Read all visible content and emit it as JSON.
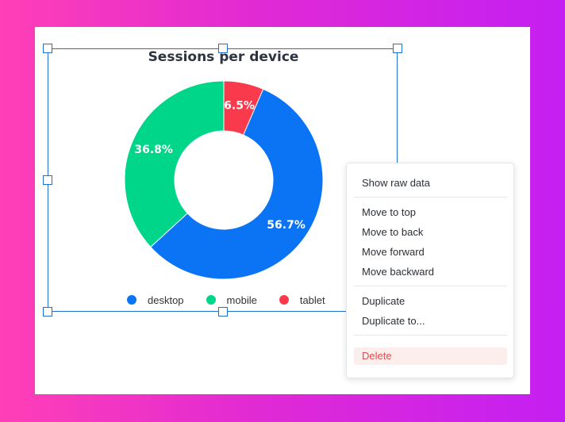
{
  "chart_data": {
    "type": "pie",
    "donut": true,
    "title": "Sessions per device",
    "categories": [
      "desktop",
      "mobile",
      "tablet"
    ],
    "values": [
      56.7,
      36.8,
      6.5
    ],
    "labels": [
      "56.7%",
      "36.8%",
      "6.5%"
    ],
    "colors": [
      "#0a74f5",
      "#00d68a",
      "#f93a4c"
    ],
    "legend_position": "bottom"
  },
  "context_menu": {
    "items": [
      {
        "label": "Show raw data"
      },
      {
        "label": "Move to top"
      },
      {
        "label": "Move to back"
      },
      {
        "label": "Move forward"
      },
      {
        "label": "Move backward"
      },
      {
        "label": "Duplicate"
      },
      {
        "label": "Duplicate to..."
      },
      {
        "label": "Delete",
        "danger": true
      }
    ]
  }
}
